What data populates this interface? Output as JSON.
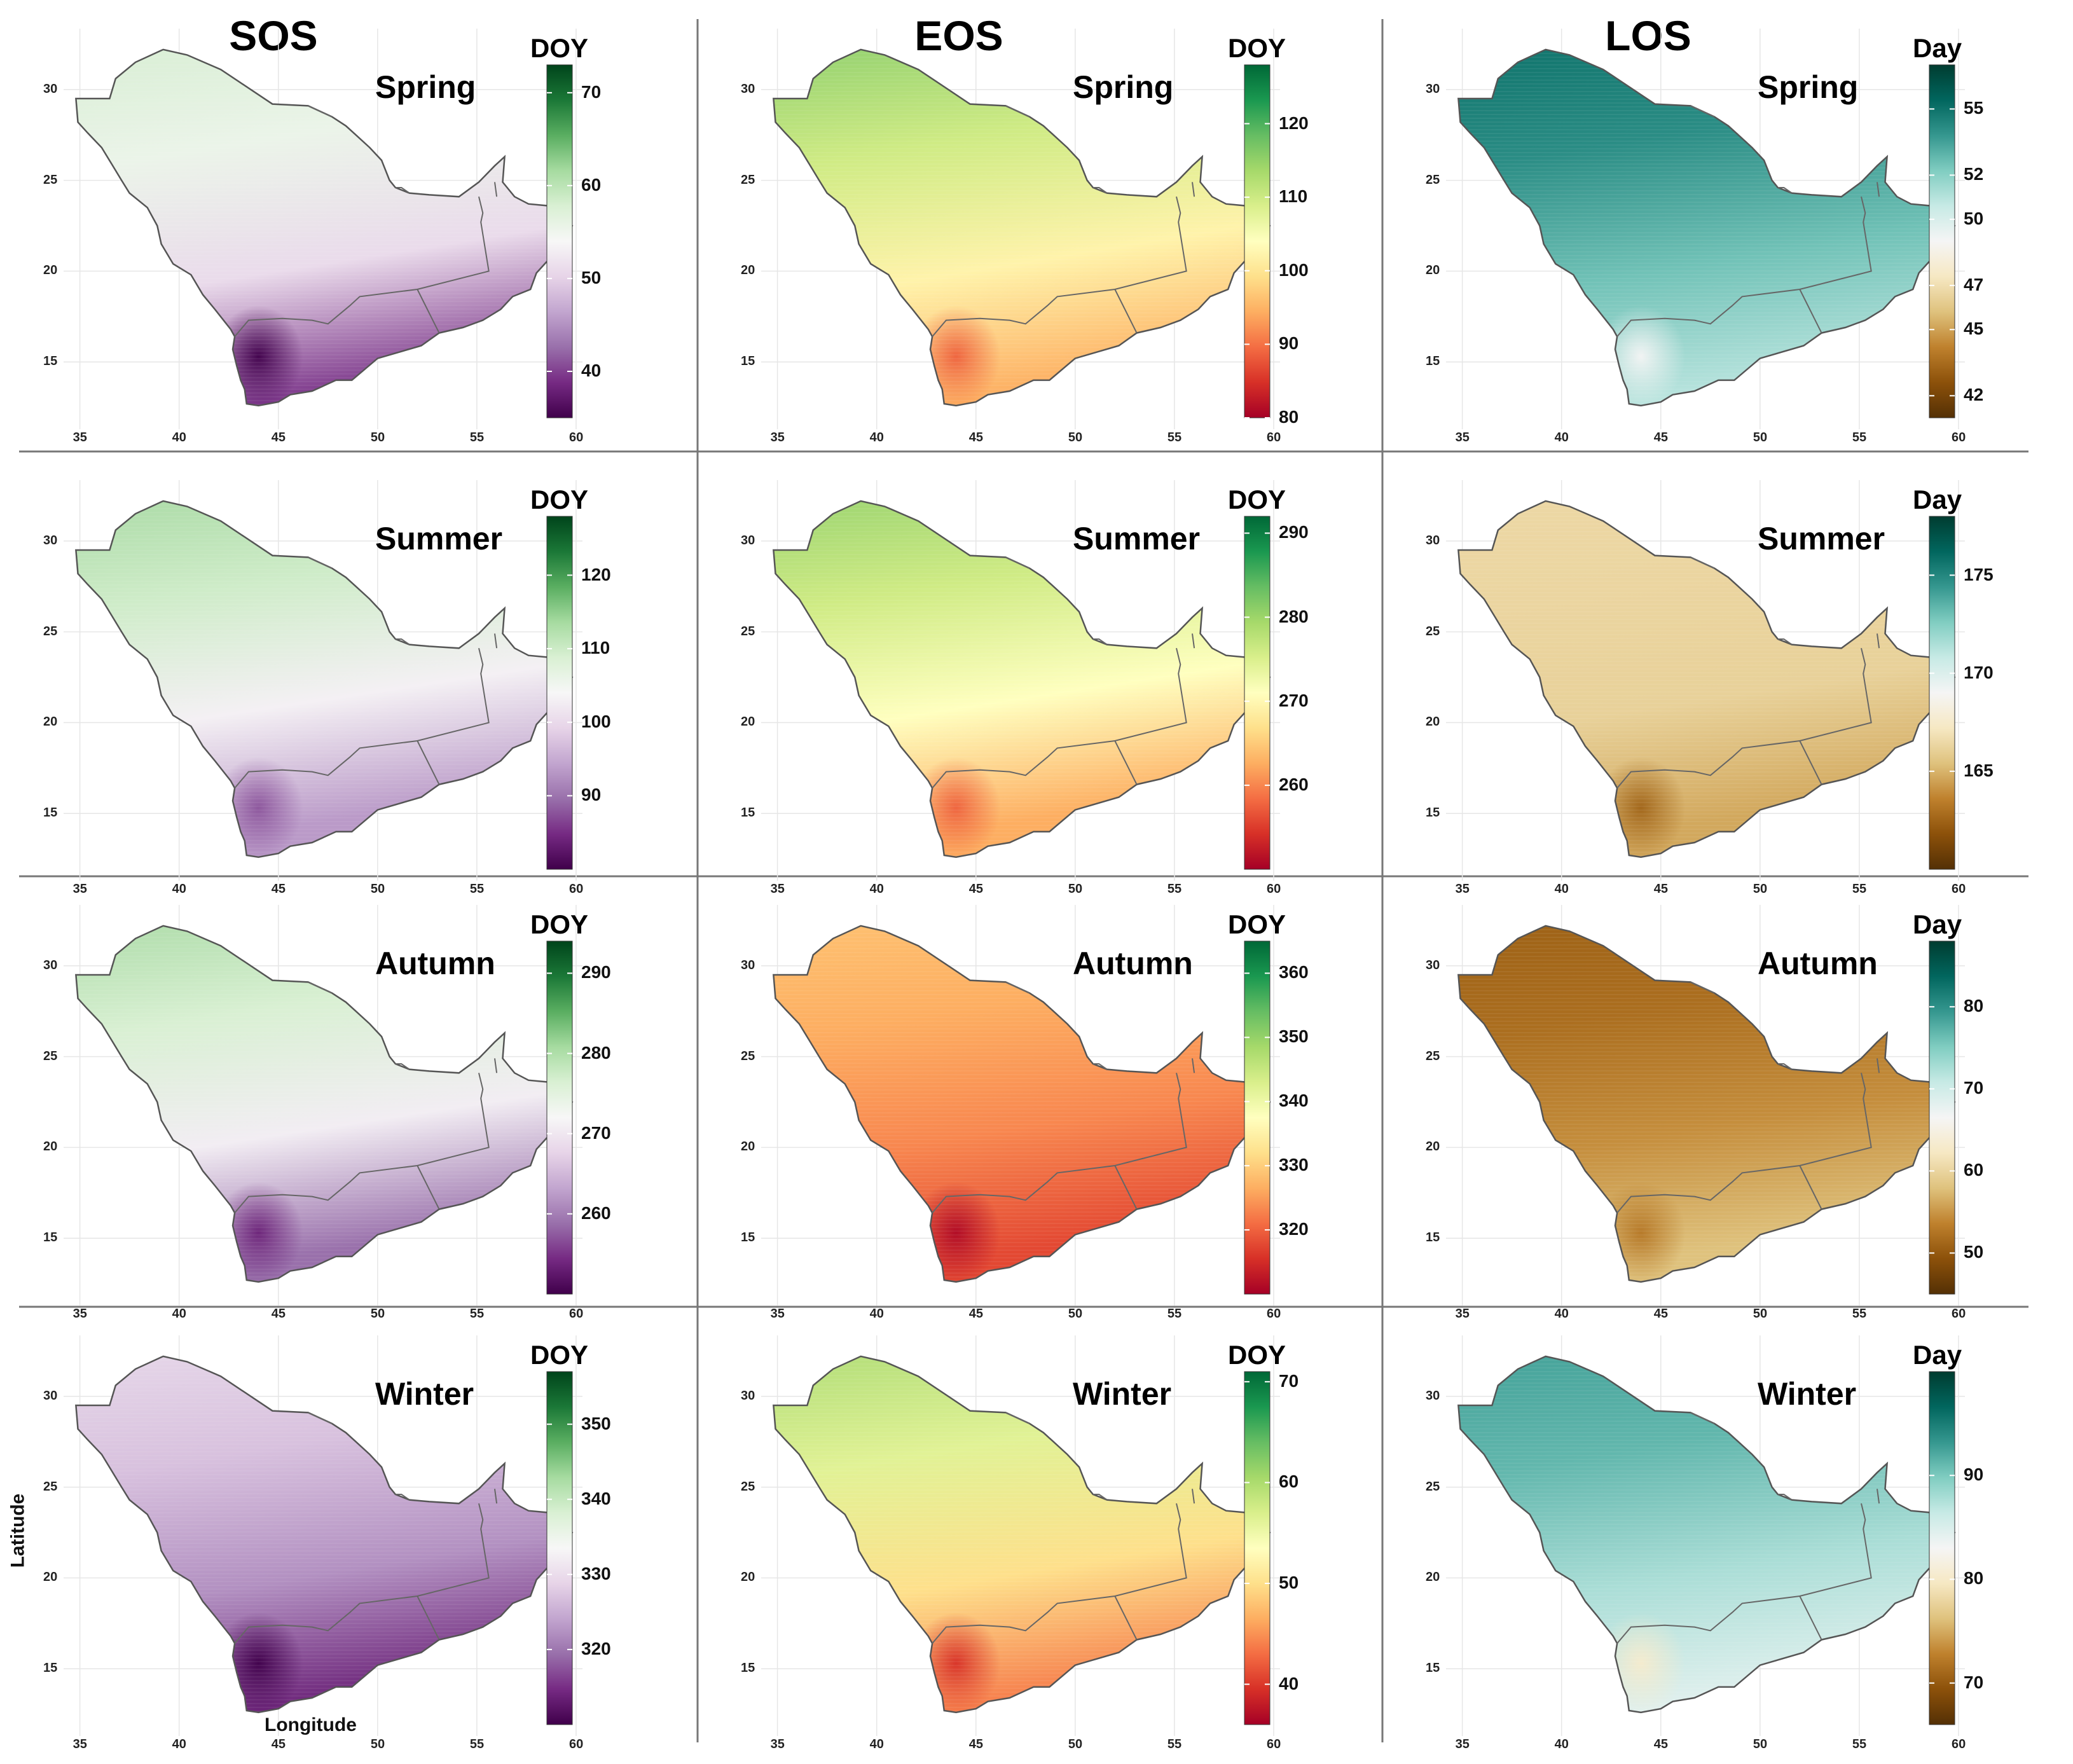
{
  "figure": {
    "columns": [
      {
        "title": "SOS",
        "unit": "DOY"
      },
      {
        "title": "EOS",
        "unit": "DOY"
      },
      {
        "title": "LOS",
        "unit": "Day"
      }
    ],
    "seasons": [
      "Spring",
      "Summer",
      "Autumn",
      "Winter"
    ],
    "x_axis": {
      "label": "Longitude",
      "ticks": [
        "35",
        "40",
        "45",
        "50",
        "55",
        "60"
      ]
    },
    "y_axis": {
      "label": "Latitude",
      "ticks": [
        "30",
        "25",
        "20",
        "15"
      ]
    },
    "panels": [
      {
        "id": "sos-spring",
        "row": 0,
        "col": 0,
        "season": "Spring",
        "unit": "DOY",
        "scale": "PRGn",
        "range": [
          35,
          73
        ],
        "ticks": [
          "70",
          "60",
          "50",
          "40"
        ],
        "tick_values": [
          70,
          60,
          50,
          40
        ],
        "field": [
          0.62,
          0.54,
          0.42,
          0.12
        ]
      },
      {
        "id": "eos-spring",
        "row": 0,
        "col": 1,
        "season": "Spring",
        "unit": "DOY",
        "scale": "RdYlGn",
        "range": [
          80,
          128
        ],
        "ticks": [
          "120",
          "110",
          "100",
          "90",
          "80"
        ],
        "tick_values": [
          120,
          110,
          100,
          90,
          80
        ],
        "field": [
          0.78,
          0.62,
          0.46,
          0.3
        ]
      },
      {
        "id": "los-spring",
        "row": 0,
        "col": 2,
        "season": "Spring",
        "unit": "Day",
        "scale": "BrBG",
        "range": [
          41,
          57
        ],
        "ticks": [
          "55",
          "52",
          "50",
          "47",
          "45",
          "42"
        ],
        "tick_values": [
          55,
          52,
          50,
          47,
          45,
          42
        ],
        "field": [
          0.9,
          0.82,
          0.72,
          0.62
        ]
      },
      {
        "id": "sos-summer",
        "row": 1,
        "col": 0,
        "season": "Summer",
        "unit": "DOY",
        "scale": "PRGn",
        "range": [
          80,
          128
        ],
        "ticks": [
          "120",
          "110",
          "100",
          "90"
        ],
        "tick_values": [
          120,
          110,
          100,
          90
        ],
        "field": [
          0.72,
          0.62,
          0.48,
          0.28
        ]
      },
      {
        "id": "eos-summer",
        "row": 1,
        "col": 1,
        "season": "Summer",
        "unit": "DOY",
        "scale": "RdYlGn",
        "range": [
          250,
          292
        ],
        "ticks": [
          "290",
          "280",
          "270",
          "260"
        ],
        "tick_values": [
          290,
          280,
          270,
          260
        ],
        "field": [
          0.76,
          0.62,
          0.5,
          0.3
        ]
      },
      {
        "id": "los-summer",
        "row": 1,
        "col": 2,
        "season": "Summer",
        "unit": "Day",
        "scale": "BrBG",
        "range": [
          160,
          178
        ],
        "ticks": [
          "175",
          "170",
          "165"
        ],
        "tick_values": [
          175,
          170,
          165
        ],
        "field": [
          0.36,
          0.35,
          0.34,
          0.26
        ]
      },
      {
        "id": "sos-autumn",
        "row": 2,
        "col": 0,
        "season": "Autumn",
        "unit": "DOY",
        "scale": "PRGn",
        "range": [
          250,
          294
        ],
        "ticks": [
          "290",
          "280",
          "270",
          "260"
        ],
        "tick_values": [
          290,
          280,
          270,
          260
        ],
        "field": [
          0.72,
          0.6,
          0.47,
          0.2
        ]
      },
      {
        "id": "eos-autumn",
        "row": 2,
        "col": 1,
        "season": "Autumn",
        "unit": "DOY",
        "scale": "RdYlGn",
        "range": [
          310,
          365
        ],
        "ticks": [
          "360",
          "350",
          "340",
          "330",
          "320"
        ],
        "tick_values": [
          360,
          350,
          340,
          330,
          320
        ],
        "field": [
          0.36,
          0.3,
          0.24,
          0.14
        ]
      },
      {
        "id": "los-autumn",
        "row": 2,
        "col": 2,
        "season": "Autumn",
        "unit": "Day",
        "scale": "BrBG",
        "range": [
          45,
          88
        ],
        "ticks": [
          "80",
          "70",
          "60",
          "50"
        ],
        "tick_values": [
          80,
          70,
          60,
          50
        ],
        "field": [
          0.12,
          0.16,
          0.22,
          0.3
        ]
      },
      {
        "id": "sos-winter",
        "row": 3,
        "col": 0,
        "season": "Winter",
        "unit": "DOY",
        "scale": "PRGn",
        "range": [
          310,
          357
        ],
        "ticks": [
          "350",
          "340",
          "330",
          "320"
        ],
        "tick_values": [
          350,
          340,
          330,
          320
        ],
        "field": [
          0.44,
          0.36,
          0.26,
          0.08
        ]
      },
      {
        "id": "eos-winter",
        "row": 3,
        "col": 1,
        "season": "Winter",
        "unit": "DOY",
        "scale": "RdYlGn",
        "range": [
          36,
          71
        ],
        "ticks": [
          "70",
          "60",
          "50",
          "40"
        ],
        "tick_values": [
          70,
          60,
          50,
          40
        ],
        "field": [
          0.72,
          0.58,
          0.4,
          0.22
        ]
      },
      {
        "id": "los-winter",
        "row": 3,
        "col": 2,
        "season": "Winter",
        "unit": "Day",
        "scale": "BrBG",
        "range": [
          66,
          100
        ],
        "ticks": [
          "90",
          "80",
          "70"
        ],
        "tick_values": [
          90,
          80,
          70
        ],
        "field": [
          0.8,
          0.74,
          0.64,
          0.54
        ]
      }
    ]
  }
}
